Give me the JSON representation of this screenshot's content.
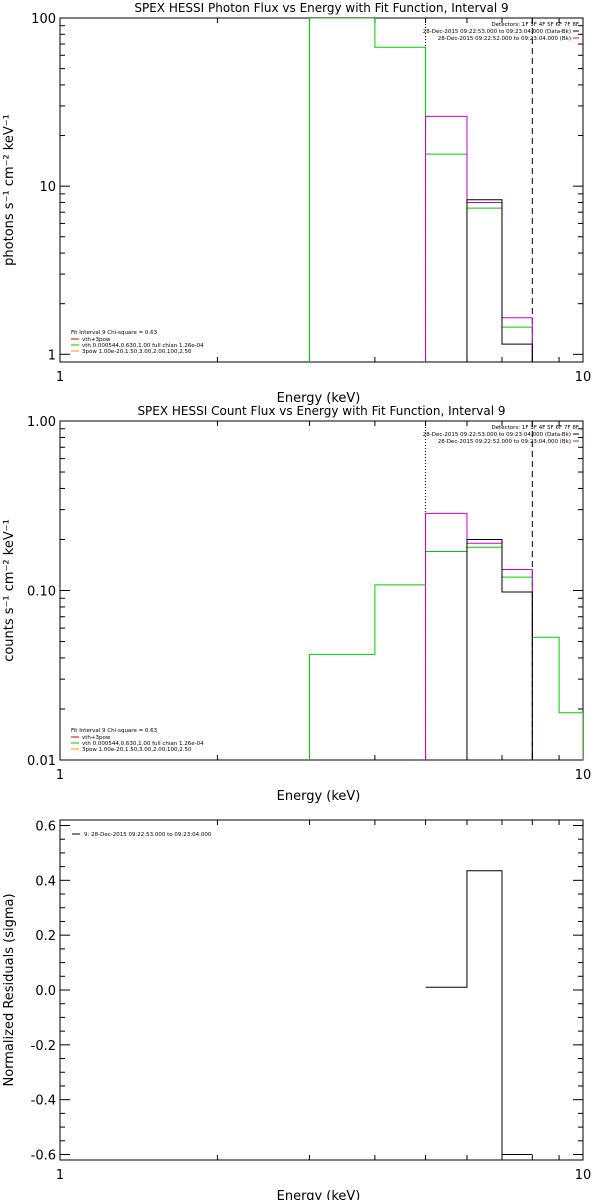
{
  "colors": {
    "black": "#000000",
    "magenta": "#cc00cc",
    "green": "#00cc00",
    "red": "#cc0000",
    "orange": "#ff9900"
  },
  "chart_data": [
    {
      "type": "line",
      "title": "SPEX HESSI Photon Flux vs Energy with Fit Function, Interval 9",
      "xlabel": "Energy (keV)",
      "ylabel": "photons s⁻¹ cm⁻² keV⁻¹",
      "xscale": "log",
      "yscale": "log",
      "xlim": [
        1,
        10
      ],
      "ylim": [
        0.9,
        100
      ],
      "xticks": [
        "1",
        "10"
      ],
      "yticks": [
        "1",
        "10",
        "100"
      ],
      "grid": false,
      "vlines": [
        {
          "x": 5.0,
          "style": "dotted"
        },
        {
          "x": 8.0,
          "style": "dashed"
        }
      ],
      "legend_top": {
        "placement": "top-right",
        "entries": [
          "Detectors: 1F 3F 4F 5F 6F 7F 8F",
          "28-Dec-2015 09:22:53.000 to 09:23:04.000 (Data-Bk)",
          "28-Dec-2015 09:22:52.000 to 09:23:04.000 (Bk)"
        ]
      },
      "legend_bottom": {
        "placement": "bottom-left",
        "header": "Fit Interval 9   Chi-square = 0.63",
        "entries": [
          "vth+3pow",
          "vth 0.000544,0.630,1.00  full chian 1.26e-04",
          "3pow 1.00e-20,1.50,3.00,2.00,100,2.50"
        ]
      },
      "series": [
        {
          "name": "vth+3pow",
          "color": "#00cc00",
          "step_x": [
            3,
            4,
            5,
            6,
            7,
            8
          ],
          "step_y": [
            100,
            67,
            15.5,
            7.4,
            1.45
          ]
        },
        {
          "color": "#cc00cc",
          "step_x": [
            5,
            6,
            7,
            8
          ],
          "step_y": [
            26,
            8.0,
            1.65
          ]
        },
        {
          "color": "#000000",
          "step_x": [
            6,
            7,
            8
          ],
          "step_y": [
            8.3,
            1.15
          ]
        }
      ]
    },
    {
      "type": "line",
      "title": "SPEX HESSI Count Flux vs Energy with Fit Function, Interval 9",
      "xlabel": "Energy (keV)",
      "ylabel": "counts s⁻¹ cm⁻² keV⁻¹",
      "xscale": "log",
      "yscale": "log",
      "xlim": [
        1,
        10
      ],
      "ylim": [
        0.01,
        1.0
      ],
      "xticks": [
        "1",
        "10"
      ],
      "yticks": [
        "0.01",
        "0.10",
        "1.00"
      ],
      "grid": false,
      "vlines": [
        {
          "x": 5.0,
          "style": "dotted"
        },
        {
          "x": 8.0,
          "style": "dashed"
        }
      ],
      "legend_top": {
        "placement": "top-right",
        "entries": [
          "Detectors: 1F 3F 4F 5F 6F 7F 8F",
          "28-Dec-2015 09:22:53.000 to 09:23:04.000 (Data-Bk)",
          "28-Dec-2015 09:22:52.000 to 09:23:04.000 (Bk)"
        ]
      },
      "legend_bottom": {
        "placement": "bottom-left",
        "header": "Fit Interval 9   Chi-square = 0.63",
        "entries": [
          "vth+3pow",
          "vth 0.000544,0.630,1.00  full chian 1.26e-04",
          "3pow 1.00e-20,1.50,3.00,2.00,100,2.50"
        ]
      },
      "series": [
        {
          "name": "vth+3pow",
          "color": "#00cc00",
          "step_x": [
            3,
            4,
            5,
            6,
            7,
            8,
            9,
            10
          ],
          "step_y": [
            0.042,
            0.108,
            0.17,
            0.18,
            0.12,
            0.053,
            0.019
          ],
          "left_drop": 0.01,
          "right_drop": 0.01
        },
        {
          "color": "#cc00cc",
          "step_x": [
            5,
            6,
            7,
            8
          ],
          "step_y": [
            0.285,
            0.19,
            0.133
          ]
        },
        {
          "color": "#000000",
          "step_x": [
            6,
            7,
            8
          ],
          "step_y": [
            0.2,
            0.098
          ]
        }
      ]
    },
    {
      "type": "line",
      "title": "",
      "xlabel": "Energy (keV)",
      "ylabel": "Normalized Residuals (sigma)",
      "xscale": "log",
      "yscale": "linear",
      "xlim": [
        1,
        10
      ],
      "ylim": [
        -0.62,
        0.62
      ],
      "xticks": [
        "1",
        "10"
      ],
      "yticks": [
        "-0.6",
        "-0.4",
        "-0.2",
        "0.0",
        "0.2",
        "0.4",
        "0.6"
      ],
      "grid": false,
      "legend_top": {
        "placement": "top-left",
        "entries": [
          "9: 28-Dec-2015 09:22:53.000 to 09:23:04.000"
        ]
      },
      "series": [
        {
          "color": "#000000",
          "step_x": [
            5,
            6,
            7,
            8
          ],
          "step_y": [
            0.01,
            0.435,
            -0.6
          ]
        }
      ]
    }
  ]
}
